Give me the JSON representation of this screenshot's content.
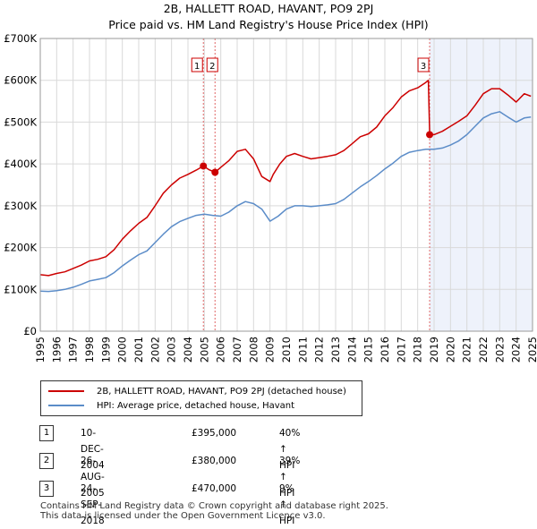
{
  "title": "2B, HALLETT ROAD, HAVANT, PO9 2PJ",
  "subtitle": "Price paid vs. HM Land Registry's House Price Index (HPI)",
  "colors": {
    "property": "#cc0000",
    "hpi": "#5b8cc8",
    "shade": "#eef2fb",
    "grid": "#d9d9d9"
  },
  "chart_data": {
    "type": "line",
    "xlim": [
      1995,
      2025
    ],
    "ylim": [
      0,
      700000
    ],
    "y_ticks": [
      {
        "value": 0,
        "label": "£0"
      },
      {
        "value": 100000,
        "label": "£100K"
      },
      {
        "value": 200000,
        "label": "£200K"
      },
      {
        "value": 300000,
        "label": "£300K"
      },
      {
        "value": 400000,
        "label": "£400K"
      },
      {
        "value": 500000,
        "label": "£500K"
      },
      {
        "value": 600000,
        "label": "£600K"
      },
      {
        "value": 700000,
        "label": "£700K"
      }
    ],
    "x_ticks": [
      1995,
      1996,
      1997,
      1998,
      1999,
      2000,
      2001,
      2002,
      2003,
      2004,
      2005,
      2006,
      2007,
      2008,
      2009,
      2010,
      2011,
      2012,
      2013,
      2014,
      2015,
      2016,
      2017,
      2018,
      2019,
      2020,
      2021,
      2022,
      2023,
      2024,
      2025
    ],
    "shaded_region": [
      2018.73,
      2025
    ],
    "series": [
      {
        "name": "2B, HALLETT ROAD, HAVANT, PO9 2PJ (detached house)",
        "x": [
          1995,
          1995.5,
          1996,
          1996.5,
          1997,
          1997.5,
          1998,
          1998.5,
          1999,
          1999.5,
          2000,
          2000.5,
          2001,
          2001.5,
          2002,
          2002.5,
          2003,
          2003.5,
          2004,
          2004.5,
          2004.94,
          2005.3,
          2005.65,
          2006,
          2006.5,
          2007,
          2007.5,
          2008,
          2008.5,
          2009,
          2009.2,
          2009.6,
          2010,
          2010.5,
          2011,
          2011.5,
          2012,
          2012.5,
          2013,
          2013.5,
          2014,
          2014.5,
          2015,
          2015.5,
          2016,
          2016.5,
          2017,
          2017.5,
          2018,
          2018.5,
          2018.65,
          2018.73,
          2019,
          2019.5,
          2020,
          2020.5,
          2021,
          2021.5,
          2022,
          2022.5,
          2023,
          2023.5,
          2024,
          2024.5,
          2024.9
        ],
        "values": [
          135000,
          133000,
          138000,
          142000,
          150000,
          158000,
          168000,
          172000,
          178000,
          195000,
          220000,
          240000,
          258000,
          272000,
          300000,
          330000,
          350000,
          366000,
          375000,
          385000,
          395000,
          386000,
          380000,
          392000,
          408000,
          430000,
          435000,
          412000,
          370000,
          358000,
          375000,
          400000,
          418000,
          425000,
          418000,
          412000,
          415000,
          418000,
          422000,
          432000,
          448000,
          465000,
          472000,
          488000,
          515000,
          535000,
          560000,
          575000,
          582000,
          595000,
          600000,
          470000,
          470000,
          478000,
          490000,
          502000,
          515000,
          540000,
          568000,
          580000,
          580000,
          565000,
          548000,
          568000,
          562000
        ]
      },
      {
        "name": "HPI: Average price, detached house, Havant",
        "x": [
          1995,
          1995.5,
          1996,
          1996.5,
          1997,
          1997.5,
          1998,
          1998.5,
          1999,
          1999.5,
          2000,
          2000.5,
          2001,
          2001.5,
          2002,
          2002.5,
          2003,
          2003.5,
          2004,
          2004.5,
          2005,
          2005.5,
          2006,
          2006.5,
          2007,
          2007.5,
          2008,
          2008.5,
          2009,
          2009.5,
          2010,
          2010.5,
          2011,
          2011.5,
          2012,
          2012.5,
          2013,
          2013.5,
          2014,
          2014.5,
          2015,
          2015.5,
          2016,
          2016.5,
          2017,
          2017.5,
          2018,
          2018.5,
          2019,
          2019.5,
          2020,
          2020.5,
          2021,
          2021.5,
          2022,
          2022.5,
          2023,
          2023.5,
          2024,
          2024.5,
          2024.9
        ],
        "values": [
          96000,
          95000,
          97000,
          100000,
          105000,
          112000,
          120000,
          124000,
          128000,
          140000,
          156000,
          170000,
          183000,
          192000,
          212000,
          232000,
          250000,
          262000,
          270000,
          277000,
          280000,
          277000,
          275000,
          285000,
          300000,
          310000,
          305000,
          292000,
          263000,
          275000,
          292000,
          300000,
          300000,
          298000,
          300000,
          302000,
          305000,
          315000,
          330000,
          345000,
          358000,
          372000,
          388000,
          402000,
          418000,
          428000,
          432000,
          435000,
          435000,
          438000,
          445000,
          455000,
          470000,
          490000,
          510000,
          520000,
          525000,
          512000,
          500000,
          510000,
          512000
        ]
      }
    ],
    "transactions": [
      {
        "id": "1",
        "x": 2004.94,
        "value": 395000
      },
      {
        "id": "2",
        "x": 2005.65,
        "value": 380000
      },
      {
        "id": "3",
        "x": 2018.73,
        "value": 470000
      }
    ]
  },
  "legend": {
    "property": "2B, HALLETT ROAD, HAVANT, PO9 2PJ (detached house)",
    "hpi": "HPI: Average price, detached house, Havant"
  },
  "table": [
    {
      "num": "1",
      "date": "10-DEC-2004",
      "price": "£395,000",
      "hpi": "40% ↑ HPI"
    },
    {
      "num": "2",
      "date": "26-AUG-2005",
      "price": "£380,000",
      "hpi": "39% ↑ HPI"
    },
    {
      "num": "3",
      "date": "24-SEP-2018",
      "price": "£470,000",
      "hpi": "9% ↑ HPI"
    }
  ],
  "footer": {
    "line1": "Contains HM Land Registry data © Crown copyright and database right 2025.",
    "line2": "This data is licensed under the Open Government Licence v3.0."
  }
}
